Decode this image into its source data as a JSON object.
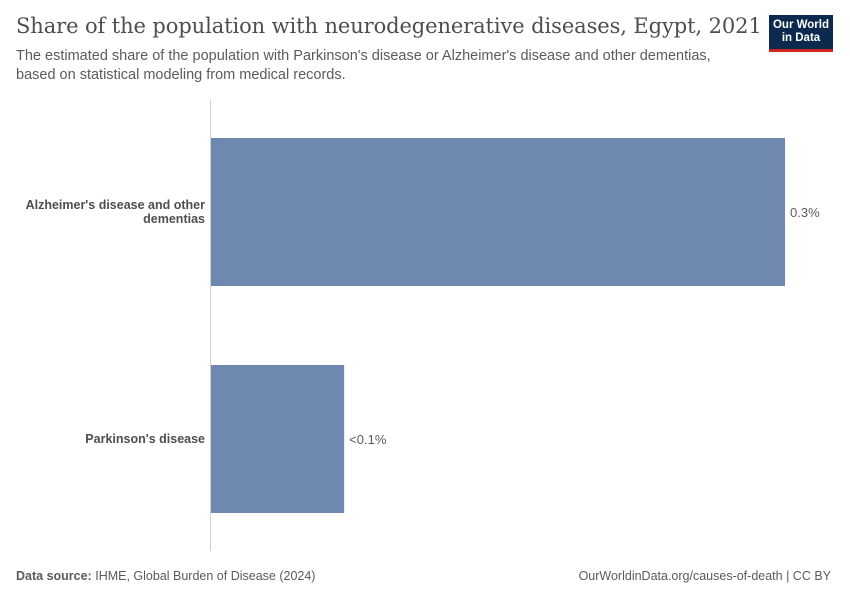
{
  "header": {
    "title": "Share of the population with neurodegenerative diseases, Egypt, 2021",
    "subtitle": "The estimated share of the population with Parkinson's disease or Alzheimer's disease and other dementias, based on statistical modeling from medical records."
  },
  "logo": {
    "line1": "Our World",
    "line2": "in Data"
  },
  "footer": {
    "source_label": "Data source:",
    "source_text": "IHME, Global Burden of Disease (2024)",
    "link": "OurWorldinData.org/causes-of-death | CC BY"
  },
  "colors": {
    "bar": "#6f88b0",
    "axis": "#d0d0d0",
    "logo_bg": "#0c2a4e",
    "logo_accent": "#ce261e"
  },
  "chart_data": {
    "type": "bar",
    "orientation": "horizontal",
    "categories": [
      [
        "Alzheimer's disease and other",
        "dementias"
      ],
      [
        "Parkinson's disease"
      ]
    ],
    "values": [
      0.3,
      0.07
    ],
    "value_labels": [
      "0.3%",
      "<0.1%"
    ],
    "xlim": [
      0,
      0.3
    ],
    "grid": false,
    "legend": "none"
  }
}
